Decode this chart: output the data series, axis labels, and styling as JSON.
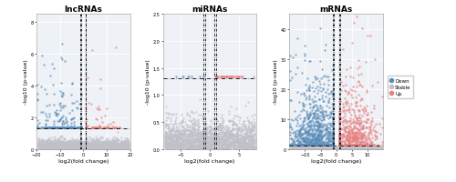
{
  "panels": [
    {
      "title": "lncRNAs",
      "xlabel": "log2(fold change)",
      "ylabel": "-log10 (p-value)",
      "xlim": [
        -20,
        20
      ],
      "ylim": [
        0,
        8.5
      ],
      "yticks": [
        0,
        2,
        4,
        6,
        8
      ],
      "xticks": [
        -20,
        -10,
        0,
        10,
        20
      ],
      "vlines": [
        -1,
        1
      ],
      "hline": 1.3,
      "n_down": 300,
      "n_stable": 3000,
      "n_up": 100,
      "seed": 42
    },
    {
      "title": "miRNAs",
      "xlabel": "log2(fold change)",
      "ylabel": "-log10 (p-value)",
      "xlim": [
        -8,
        8
      ],
      "ylim": [
        0,
        2.5
      ],
      "yticks": [
        0.0,
        0.5,
        1.0,
        1.5,
        2.0,
        2.5
      ],
      "xticks": [
        -5,
        0,
        5
      ],
      "vlines": [
        -1,
        1
      ],
      "hline": 1.3,
      "n_down": 8,
      "n_stable": 2000,
      "n_up": 55,
      "seed": 7
    },
    {
      "title": "mRNAs",
      "xlabel": "log2(fold change)",
      "ylabel": "-log10 (p-value)",
      "xlim": [
        -15,
        15
      ],
      "ylim": [
        0,
        45
      ],
      "yticks": [
        0,
        10,
        20,
        30,
        40
      ],
      "xticks": [
        -10,
        -5,
        0,
        5,
        10
      ],
      "vlines": [
        -1,
        1
      ],
      "hline": 1.3,
      "n_down": 900,
      "n_stable": 2000,
      "n_up": 600,
      "seed": 99
    }
  ],
  "colors": {
    "down": "#5B8DB8",
    "stable": "#C0C0C8",
    "up": "#E88080",
    "bg": "#EEF2F7",
    "grid": "#FFFFFF"
  },
  "legend_labels": [
    "Down",
    "Stable",
    "Up"
  ],
  "dot_size": 3,
  "dot_alpha": 0.65
}
